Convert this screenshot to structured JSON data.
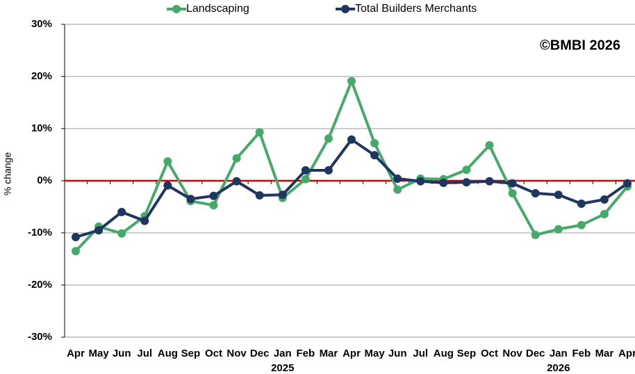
{
  "chart_data": {
    "type": "line",
    "annotation": "©BMBI 2026",
    "y_label": "% change",
    "categories": [
      "Apr",
      "May",
      "Jun",
      "Jul",
      "Aug",
      "Sep",
      "Oct",
      "Nov",
      "Dec",
      "Jan",
      "Feb",
      "Mar",
      "Apr",
      "May",
      "Jun",
      "Jul",
      "Aug",
      "Sep",
      "Oct",
      "Nov",
      "Dec",
      "Jan",
      "Feb",
      "Mar",
      "Apr"
    ],
    "secondary_labels": [
      null,
      null,
      null,
      null,
      null,
      null,
      null,
      null,
      null,
      "2025",
      null,
      null,
      null,
      null,
      null,
      null,
      null,
      null,
      null,
      null,
      null,
      "2026",
      null,
      null,
      null
    ],
    "series": [
      {
        "name": "Landscaping",
        "color": "#46a96a",
        "values": [
          -13.5,
          -8.8,
          -10.1,
          -6.8,
          3.7,
          -3.9,
          -4.7,
          4.3,
          9.3,
          -3.3,
          0.3,
          8.1,
          19.1,
          7.2,
          -1.7,
          0.4,
          0.3,
          2.1,
          6.8,
          -2.4,
          -10.4,
          -9.3,
          -8.5,
          -6.4,
          -1.1
        ]
      },
      {
        "name": "Total Builders Merchants",
        "color": "#1f3660",
        "values": [
          -10.8,
          -9.5,
          -6.0,
          -7.7,
          -0.9,
          -3.5,
          -2.9,
          -0.1,
          -2.8,
          -2.7,
          2.0,
          2.0,
          7.9,
          4.9,
          0.4,
          -0.1,
          -0.4,
          -0.3,
          -0.1,
          -0.5,
          -2.4,
          -2.7,
          -4.4,
          -3.6,
          -0.5
        ]
      }
    ],
    "ylim": [
      -30,
      30
    ],
    "yticks": [
      {
        "value": -30,
        "label": "-30%"
      },
      {
        "value": -20,
        "label": "-20%"
      },
      {
        "value": -10,
        "label": "-10%"
      },
      {
        "value": 0,
        "label": "0%"
      },
      {
        "value": 10,
        "label": "10%"
      },
      {
        "value": 20,
        "label": "20%"
      },
      {
        "value": 30,
        "label": "30%"
      }
    ],
    "grid": true,
    "zero_line_color": "#e00000",
    "legend": "top"
  }
}
